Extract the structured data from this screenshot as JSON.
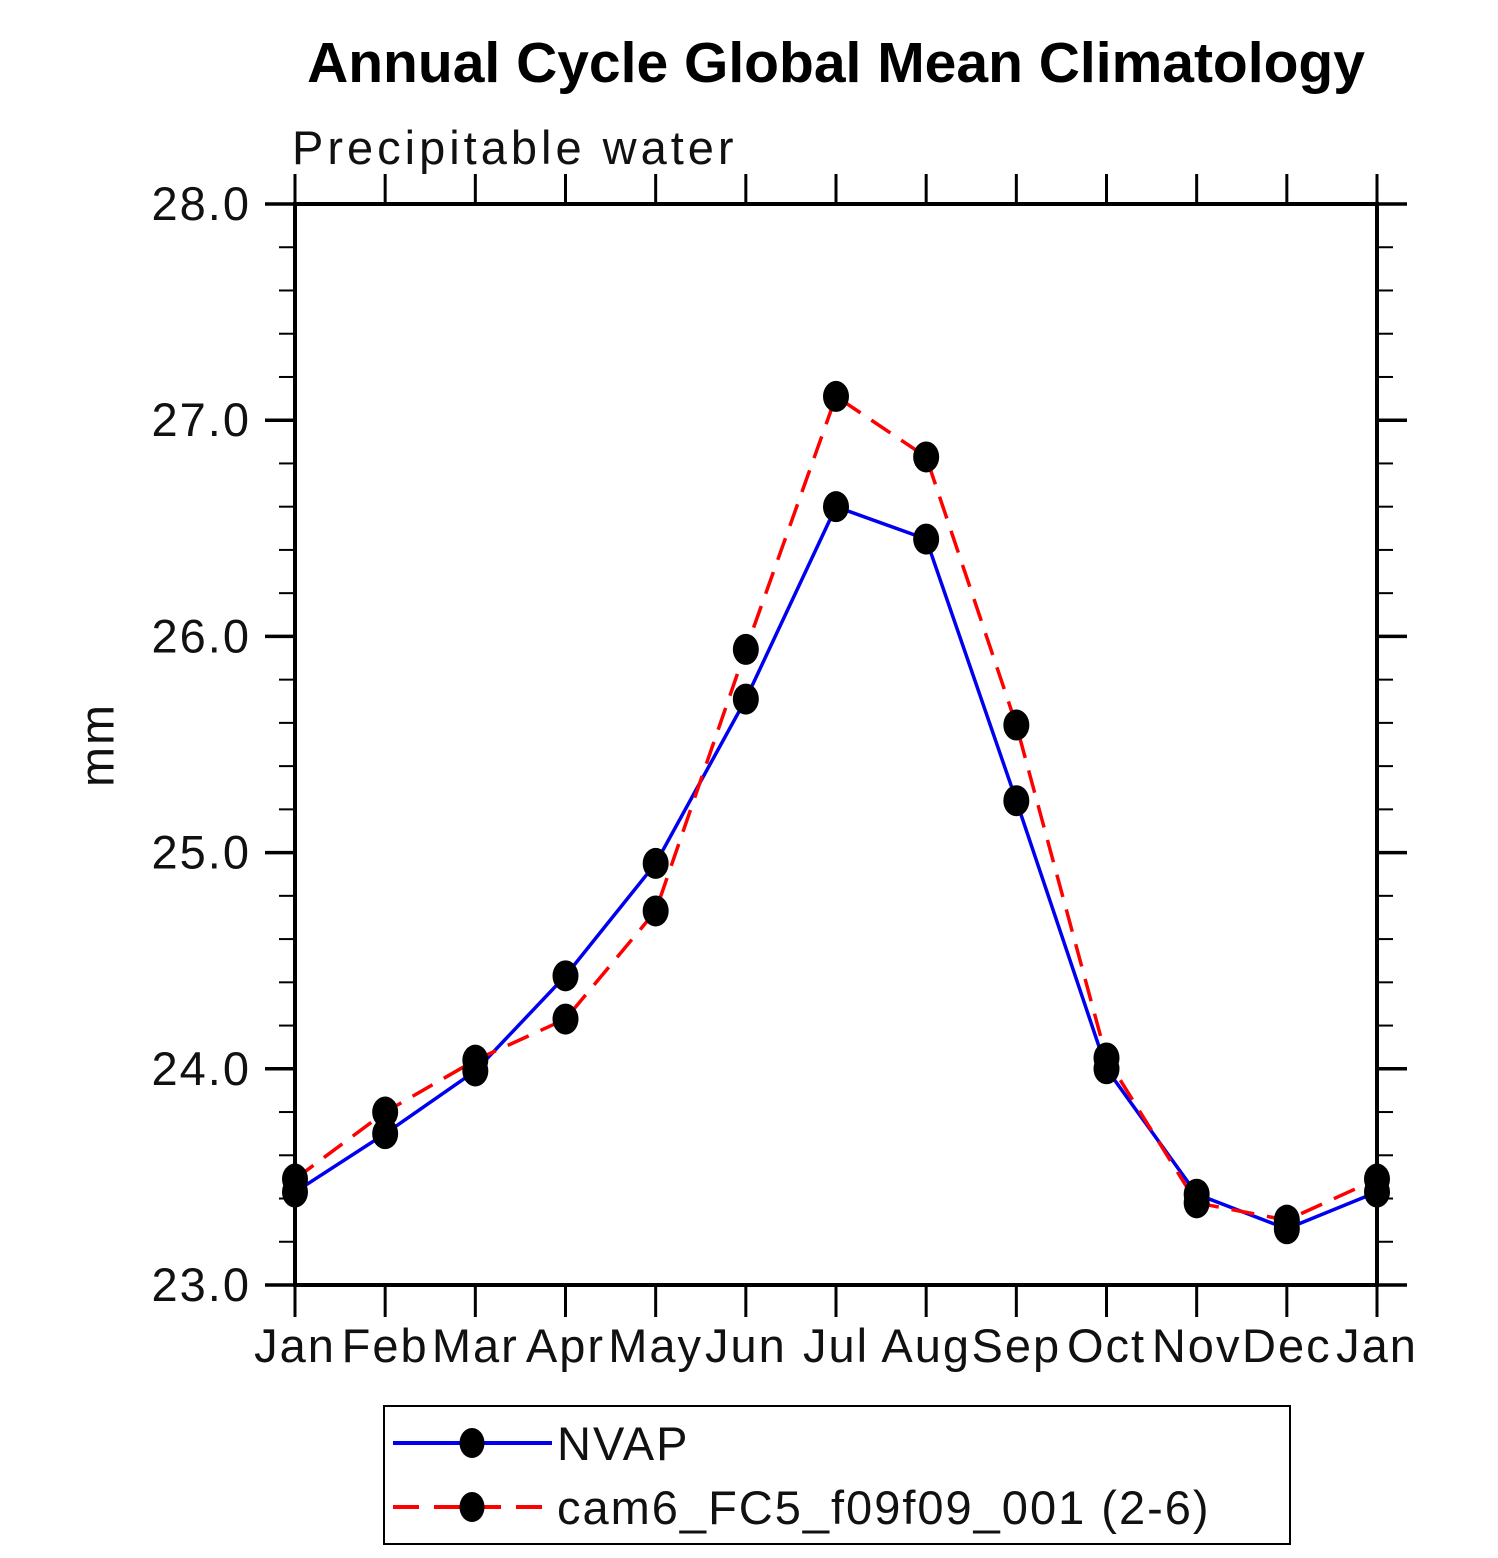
{
  "chart_data": {
    "type": "line",
    "title": "Annual Cycle Global Mean Climatology",
    "subtitle": "Precipitable water",
    "ylabel": "mm",
    "ylim": [
      23.0,
      28.0
    ],
    "ytick_interval": 1.0,
    "ytick_minor_interval": 0.2,
    "ytick_labels": [
      "23.0",
      "24.0",
      "25.0",
      "26.0",
      "27.0",
      "28.0"
    ],
    "categories": [
      "Jan",
      "Feb",
      "Mar",
      "Apr",
      "May",
      "Jun",
      "Jul",
      "Aug",
      "Sep",
      "Oct",
      "Nov",
      "Dec",
      "Jan"
    ],
    "series": [
      {
        "name": "NVAP",
        "color": "#0000ee",
        "line_style": "solid",
        "marker": "filled-circle",
        "marker_color": "#000000",
        "values": [
          23.43,
          23.7,
          23.99,
          24.43,
          24.95,
          25.71,
          26.6,
          26.45,
          25.24,
          24.0,
          23.42,
          23.26,
          23.43
        ]
      },
      {
        "name": "cam6_FC5_f09f09_001 (2-6)",
        "color": "#ff0000",
        "line_style": "dashed",
        "marker": "filled-circle",
        "marker_color": "#000000",
        "values": [
          23.49,
          23.8,
          24.04,
          24.23,
          24.73,
          25.94,
          27.11,
          26.83,
          25.59,
          24.05,
          23.38,
          23.3,
          23.49
        ]
      }
    ],
    "grid": false,
    "legend_position": "bottom"
  }
}
